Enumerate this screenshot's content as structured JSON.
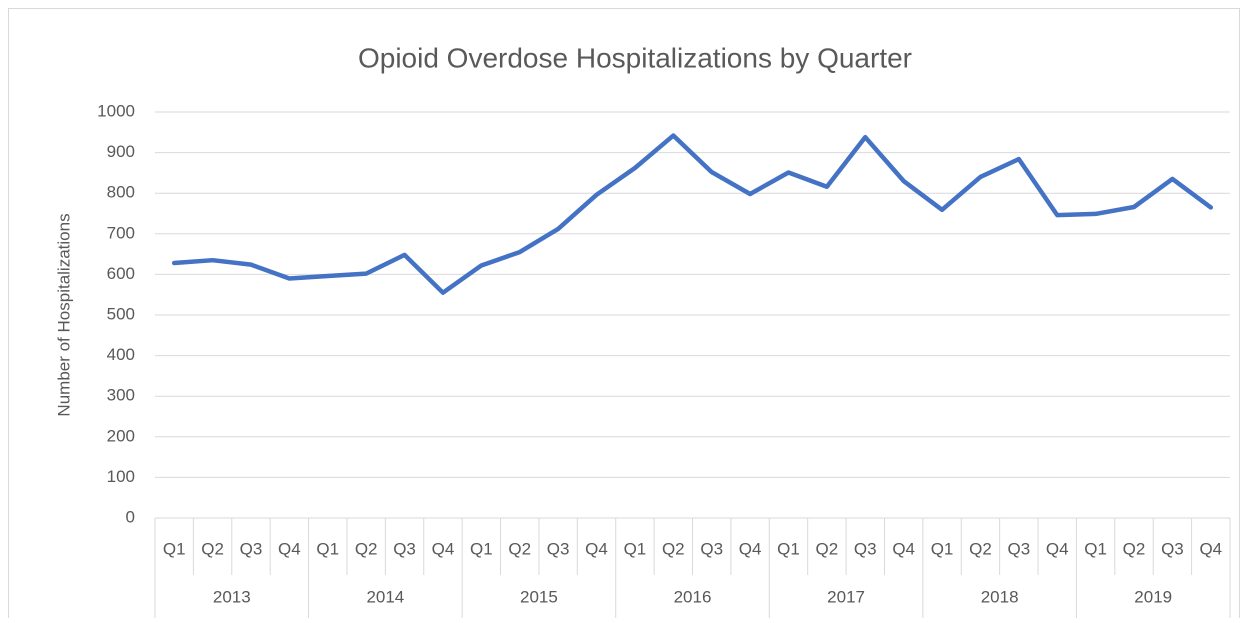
{
  "chart_data": {
    "type": "line",
    "title": "Opioid Overdose Hospitalizations by Quarter",
    "y_label": "Number of Hospitalizations",
    "categories": [
      "Q1",
      "Q2",
      "Q3",
      "Q4",
      "Q1",
      "Q2",
      "Q3",
      "Q4",
      "Q1",
      "Q2",
      "Q3",
      "Q4",
      "Q1",
      "Q2",
      "Q3",
      "Q4",
      "Q1",
      "Q2",
      "Q3",
      "Q4",
      "Q1",
      "Q2",
      "Q3",
      "Q4",
      "Q1",
      "Q2",
      "Q3",
      "Q4"
    ],
    "groups": [
      "2013",
      "2014",
      "2015",
      "2016",
      "2017",
      "2018",
      "2019"
    ],
    "series": [
      {
        "color": "#4472c4",
        "values": [
          628,
          635,
          624,
          590,
          596,
          602,
          648,
          555,
          622,
          655,
          712,
          796,
          862,
          942,
          852,
          798,
          851,
          816,
          938,
          830,
          759,
          840,
          884,
          746,
          749,
          766,
          835,
          765
        ]
      }
    ],
    "ylim": [
      0,
      1000
    ],
    "yticks": [
      0,
      100,
      200,
      300,
      400,
      500,
      600,
      700,
      800,
      900,
      1000
    ],
    "grid": true
  }
}
